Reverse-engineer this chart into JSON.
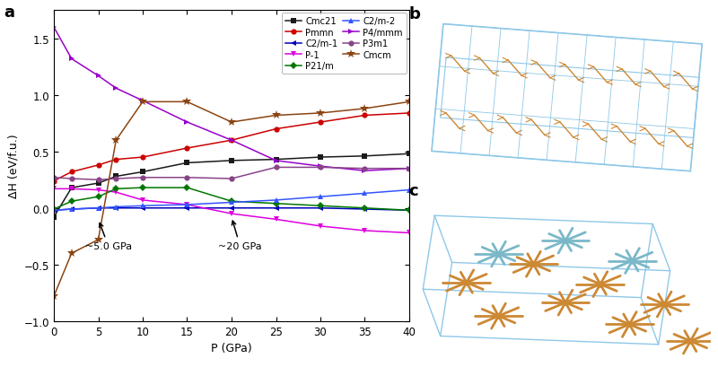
{
  "pressure": [
    0,
    2,
    5,
    7,
    10,
    15,
    20,
    25,
    30,
    35,
    40
  ],
  "series_order": [
    "Cmc21",
    "Pmmn",
    "C2/m-1",
    "P-1",
    "P21/m",
    "C2/m-2",
    "P4/mmm",
    "P3m1",
    "Cmcm"
  ],
  "series": {
    "Cmc21": {
      "color": "#1a1a1a",
      "marker": "s",
      "values": [
        -0.08,
        0.18,
        0.22,
        0.28,
        0.32,
        0.4,
        0.42,
        0.43,
        0.45,
        0.46,
        0.48
      ]
    },
    "Pmmn": {
      "color": "#cc0000",
      "marker": "o",
      "values": [
        0.24,
        0.32,
        0.38,
        0.43,
        0.45,
        0.53,
        0.6,
        0.7,
        0.76,
        0.82,
        0.84
      ]
    },
    "C2/m-1": {
      "color": "#0000bb",
      "marker": "<",
      "values": [
        -0.02,
        -0.01,
        0.0,
        0.0,
        0.0,
        0.0,
        0.0,
        0.0,
        0.0,
        -0.01,
        -0.02
      ]
    },
    "P-1": {
      "color": "#dd00dd",
      "marker": "v",
      "values": [
        0.17,
        0.17,
        0.16,
        0.14,
        0.07,
        0.03,
        -0.05,
        -0.1,
        -0.16,
        -0.2,
        -0.22
      ]
    },
    "P21/m": {
      "color": "#007700",
      "marker": "D",
      "values": [
        -0.01,
        0.06,
        0.1,
        0.17,
        0.18,
        0.18,
        0.06,
        0.04,
        0.02,
        0.0,
        -0.02
      ]
    },
    "C2/m-2": {
      "color": "#3355ff",
      "marker": "^",
      "values": [
        -0.02,
        -0.01,
        0.0,
        0.01,
        0.02,
        0.03,
        0.05,
        0.07,
        0.1,
        0.13,
        0.16
      ]
    },
    "P4/mmm": {
      "color": "#9900cc",
      "marker": ">",
      "values": [
        1.6,
        1.32,
        1.17,
        1.06,
        0.95,
        0.76,
        0.6,
        0.42,
        0.37,
        0.33,
        0.35
      ]
    },
    "P3m1": {
      "color": "#884488",
      "marker": "o",
      "values": [
        0.27,
        0.26,
        0.25,
        0.26,
        0.27,
        0.27,
        0.26,
        0.36,
        0.36,
        0.35,
        0.35
      ]
    },
    "Cmcm": {
      "color": "#8B4513",
      "marker": "*",
      "values": [
        -0.78,
        -0.4,
        -0.28,
        0.6,
        0.94,
        0.94,
        0.76,
        0.82,
        0.84,
        0.88,
        0.94
      ]
    }
  },
  "legend_col1": [
    "Cmc21",
    "C2/m-1",
    "P21/m",
    "P4/mmm",
    "Cmcm"
  ],
  "legend_col2": [
    "Pmmn",
    "P-1",
    "C2/m-2",
    "P3m1"
  ],
  "xlim": [
    0,
    40
  ],
  "ylim": [
    -1.0,
    1.75
  ],
  "xlabel": "P (GPa)",
  "ylabel": "ΔH (eV/f.u.)",
  "panel_label_a": "a",
  "panel_label_b": "b",
  "panel_label_c": "c",
  "box_color": "#8ec8e8",
  "orange_color": "#cc8833",
  "cyan_color": "#7ab8c8"
}
